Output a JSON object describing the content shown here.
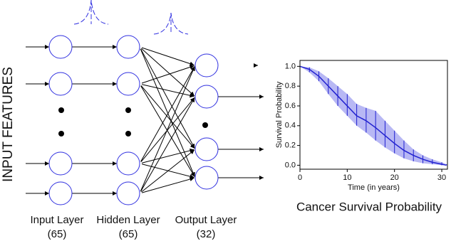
{
  "side_label": "INPUT FEATURES",
  "layers": [
    {
      "name": "Input Layer",
      "size": "(65)"
    },
    {
      "name": "Hidden Layer",
      "size": "(65)"
    },
    {
      "name": "Output Layer",
      "size": "(32)"
    }
  ],
  "chart_data": {
    "type": "line",
    "title": "Cancer Survival Probability",
    "x_label": "Time (in years)",
    "y_label": "Survival Probability",
    "x": [
      0,
      2,
      4,
      6,
      8,
      10,
      12,
      14,
      16,
      18,
      20,
      22,
      24,
      26,
      28,
      30,
      31
    ],
    "series": [
      {
        "color": "#2020d0",
        "values": [
          1.0,
          0.97,
          0.9,
          0.8,
          0.7,
          0.6,
          0.5,
          0.45,
          0.38,
          0.3,
          0.22,
          0.15,
          0.1,
          0.06,
          0.03,
          0.01,
          0.0
        ],
        "lower": [
          1.0,
          0.94,
          0.85,
          0.72,
          0.6,
          0.5,
          0.4,
          0.33,
          0.25,
          0.18,
          0.12,
          0.07,
          0.04,
          0.02,
          0.01,
          0.0,
          0.0
        ],
        "upper": [
          1.0,
          0.99,
          0.95,
          0.88,
          0.8,
          0.72,
          0.62,
          0.58,
          0.55,
          0.45,
          0.35,
          0.25,
          0.16,
          0.1,
          0.06,
          0.03,
          0.01
        ],
        "band_color": "#b8b8f4"
      }
    ],
    "xlim": [
      0,
      31.2
    ],
    "ylim": [
      -0.04,
      1.06
    ],
    "xticks": [
      0,
      10,
      20,
      30
    ],
    "yticks": [
      {
        "value": 0,
        "label": "0.0"
      },
      0.2,
      0.4,
      0.6,
      0.8,
      {
        "value": 1,
        "label": "1.0"
      }
    ]
  }
}
